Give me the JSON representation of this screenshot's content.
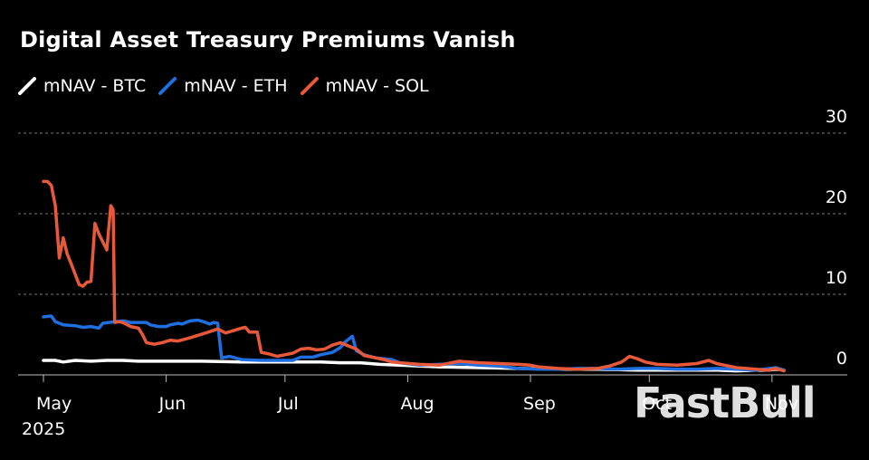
{
  "title": "Digital Asset Treasury Premiums Vanish",
  "watermark": "FastBull",
  "colors": {
    "btc": "#ffffff",
    "eth": "#1f6fe0",
    "sol": "#e8593a",
    "grid": "#777777",
    "text": "#ffffff"
  },
  "chart_data": {
    "type": "line",
    "title": "Digital Asset Treasury Premiums Vanish",
    "xlabel": "",
    "ylabel": "",
    "ylim": [
      0,
      30
    ],
    "yticks": [
      0,
      10,
      20,
      30
    ],
    "xlim": [
      0,
      187
    ],
    "x_unit": "days since May 1, 2025",
    "xticks": [
      {
        "x": 0,
        "label": "May",
        "sublabel": "2025"
      },
      {
        "x": 31,
        "label": "Jun",
        "sublabel": ""
      },
      {
        "x": 61,
        "label": "Jul",
        "sublabel": ""
      },
      {
        "x": 92,
        "label": "Aug",
        "sublabel": ""
      },
      {
        "x": 123,
        "label": "Sep",
        "sublabel": ""
      },
      {
        "x": 153,
        "label": "Oct",
        "sublabel": ""
      },
      {
        "x": 184,
        "label": "Nov",
        "sublabel": ""
      }
    ],
    "legend_position": "top-left",
    "series": [
      {
        "name": "mNAV - BTC",
        "key": "btc",
        "points": [
          [
            0,
            1.8
          ],
          [
            3,
            1.8
          ],
          [
            5,
            1.6
          ],
          [
            8,
            1.8
          ],
          [
            12,
            1.7
          ],
          [
            16,
            1.8
          ],
          [
            20,
            1.8
          ],
          [
            24,
            1.7
          ],
          [
            30,
            1.7
          ],
          [
            40,
            1.7
          ],
          [
            50,
            1.6
          ],
          [
            60,
            1.6
          ],
          [
            70,
            1.6
          ],
          [
            75,
            1.5
          ],
          [
            80,
            1.5
          ],
          [
            85,
            1.3
          ],
          [
            90,
            1.2
          ],
          [
            95,
            1.1
          ],
          [
            100,
            1.0
          ],
          [
            110,
            0.9
          ],
          [
            120,
            0.8
          ],
          [
            130,
            0.7
          ],
          [
            140,
            0.7
          ],
          [
            150,
            0.6
          ],
          [
            160,
            0.6
          ],
          [
            170,
            0.6
          ],
          [
            175,
            0.5
          ],
          [
            180,
            0.6
          ],
          [
            183,
            0.6
          ],
          [
            185,
            0.7
          ],
          [
            187,
            0.6
          ]
        ]
      },
      {
        "name": "mNAV - ETH",
        "key": "eth",
        "points": [
          [
            0,
            7.2
          ],
          [
            2,
            7.3
          ],
          [
            3,
            6.6
          ],
          [
            5,
            6.2
          ],
          [
            8,
            6.1
          ],
          [
            10,
            5.9
          ],
          [
            12,
            6.0
          ],
          [
            14,
            5.8
          ],
          [
            15,
            6.4
          ],
          [
            18,
            6.6
          ],
          [
            20,
            6.7
          ],
          [
            22,
            6.5
          ],
          [
            26,
            6.5
          ],
          [
            27,
            6.2
          ],
          [
            29,
            6.0
          ],
          [
            31,
            6.0
          ],
          [
            32,
            6.2
          ],
          [
            34,
            6.4
          ],
          [
            35,
            6.3
          ],
          [
            37,
            6.7
          ],
          [
            39,
            6.8
          ],
          [
            41,
            6.5
          ],
          [
            42,
            6.3
          ],
          [
            43,
            6.5
          ],
          [
            44,
            6.4
          ],
          [
            45,
            2.1
          ],
          [
            47,
            2.3
          ],
          [
            50,
            1.9
          ],
          [
            55,
            1.8
          ],
          [
            60,
            1.8
          ],
          [
            63,
            1.8
          ],
          [
            65,
            2.2
          ],
          [
            68,
            2.2
          ],
          [
            70,
            2.5
          ],
          [
            73,
            2.8
          ],
          [
            75,
            3.4
          ],
          [
            76,
            4.0
          ],
          [
            78,
            4.8
          ],
          [
            79,
            3.0
          ],
          [
            81,
            2.5
          ],
          [
            84,
            2.1
          ],
          [
            88,
            1.9
          ],
          [
            90,
            1.5
          ],
          [
            95,
            1.2
          ],
          [
            100,
            1.3
          ],
          [
            105,
            1.4
          ],
          [
            110,
            1.2
          ],
          [
            115,
            1.1
          ],
          [
            120,
            0.8
          ],
          [
            125,
            0.7
          ],
          [
            130,
            0.7
          ],
          [
            135,
            0.8
          ],
          [
            140,
            0.8
          ],
          [
            145,
            0.7
          ],
          [
            150,
            0.8
          ],
          [
            155,
            0.8
          ],
          [
            160,
            0.7
          ],
          [
            165,
            0.7
          ],
          [
            170,
            0.8
          ],
          [
            175,
            0.7
          ],
          [
            180,
            0.6
          ],
          [
            185,
            0.9
          ],
          [
            187,
            0.6
          ]
        ]
      },
      {
        "name": "mNAV - SOL",
        "key": "sol",
        "points": [
          [
            0,
            24.0
          ],
          [
            1,
            24.0
          ],
          [
            2,
            23.5
          ],
          [
            3,
            21.0
          ],
          [
            4,
            14.5
          ],
          [
            5,
            17.0
          ],
          [
            6,
            15.0
          ],
          [
            7,
            13.8
          ],
          [
            8,
            12.5
          ],
          [
            9,
            11.2
          ],
          [
            10,
            11.0
          ],
          [
            11,
            11.5
          ],
          [
            12,
            11.6
          ],
          [
            13,
            18.8
          ],
          [
            14,
            17.5
          ],
          [
            15,
            16.5
          ],
          [
            16,
            15.5
          ],
          [
            17,
            21.0
          ],
          [
            17.6,
            20.5
          ],
          [
            18,
            6.5
          ],
          [
            19,
            6.6
          ],
          [
            20,
            6.5
          ],
          [
            22,
            6.0
          ],
          [
            24,
            5.8
          ],
          [
            25,
            5.0
          ],
          [
            26,
            4.0
          ],
          [
            28,
            3.8
          ],
          [
            30,
            4.0
          ],
          [
            32,
            4.3
          ],
          [
            34,
            4.2
          ],
          [
            37,
            4.6
          ],
          [
            41,
            5.2
          ],
          [
            44,
            5.7
          ],
          [
            46,
            5.2
          ],
          [
            48,
            5.5
          ],
          [
            50,
            5.8
          ],
          [
            51,
            5.9
          ],
          [
            52,
            5.3
          ],
          [
            54,
            5.3
          ],
          [
            55,
            2.8
          ],
          [
            57,
            2.6
          ],
          [
            59,
            2.3
          ],
          [
            61,
            2.5
          ],
          [
            63,
            2.7
          ],
          [
            65,
            3.2
          ],
          [
            67,
            3.3
          ],
          [
            69,
            3.1
          ],
          [
            71,
            3.2
          ],
          [
            73,
            3.7
          ],
          [
            75,
            4.0
          ],
          [
            77,
            3.6
          ],
          [
            79,
            3.2
          ],
          [
            81,
            2.4
          ],
          [
            83,
            2.2
          ],
          [
            86,
            1.9
          ],
          [
            88,
            1.6
          ],
          [
            90,
            1.5
          ],
          [
            95,
            1.3
          ],
          [
            100,
            1.2
          ],
          [
            105,
            1.7
          ],
          [
            110,
            1.5
          ],
          [
            115,
            1.4
          ],
          [
            120,
            1.3
          ],
          [
            123,
            1.2
          ],
          [
            125,
            1.0
          ],
          [
            130,
            0.8
          ],
          [
            135,
            0.7
          ],
          [
            140,
            0.8
          ],
          [
            143,
            1.1
          ],
          [
            146,
            1.6
          ],
          [
            148,
            2.3
          ],
          [
            150,
            2.0
          ],
          [
            152,
            1.6
          ],
          [
            155,
            1.3
          ],
          [
            160,
            1.2
          ],
          [
            165,
            1.4
          ],
          [
            168,
            1.8
          ],
          [
            170,
            1.4
          ],
          [
            172,
            1.2
          ],
          [
            175,
            0.9
          ],
          [
            180,
            0.7
          ],
          [
            183,
            0.6
          ],
          [
            185,
            0.8
          ],
          [
            187,
            0.5
          ]
        ]
      }
    ]
  }
}
